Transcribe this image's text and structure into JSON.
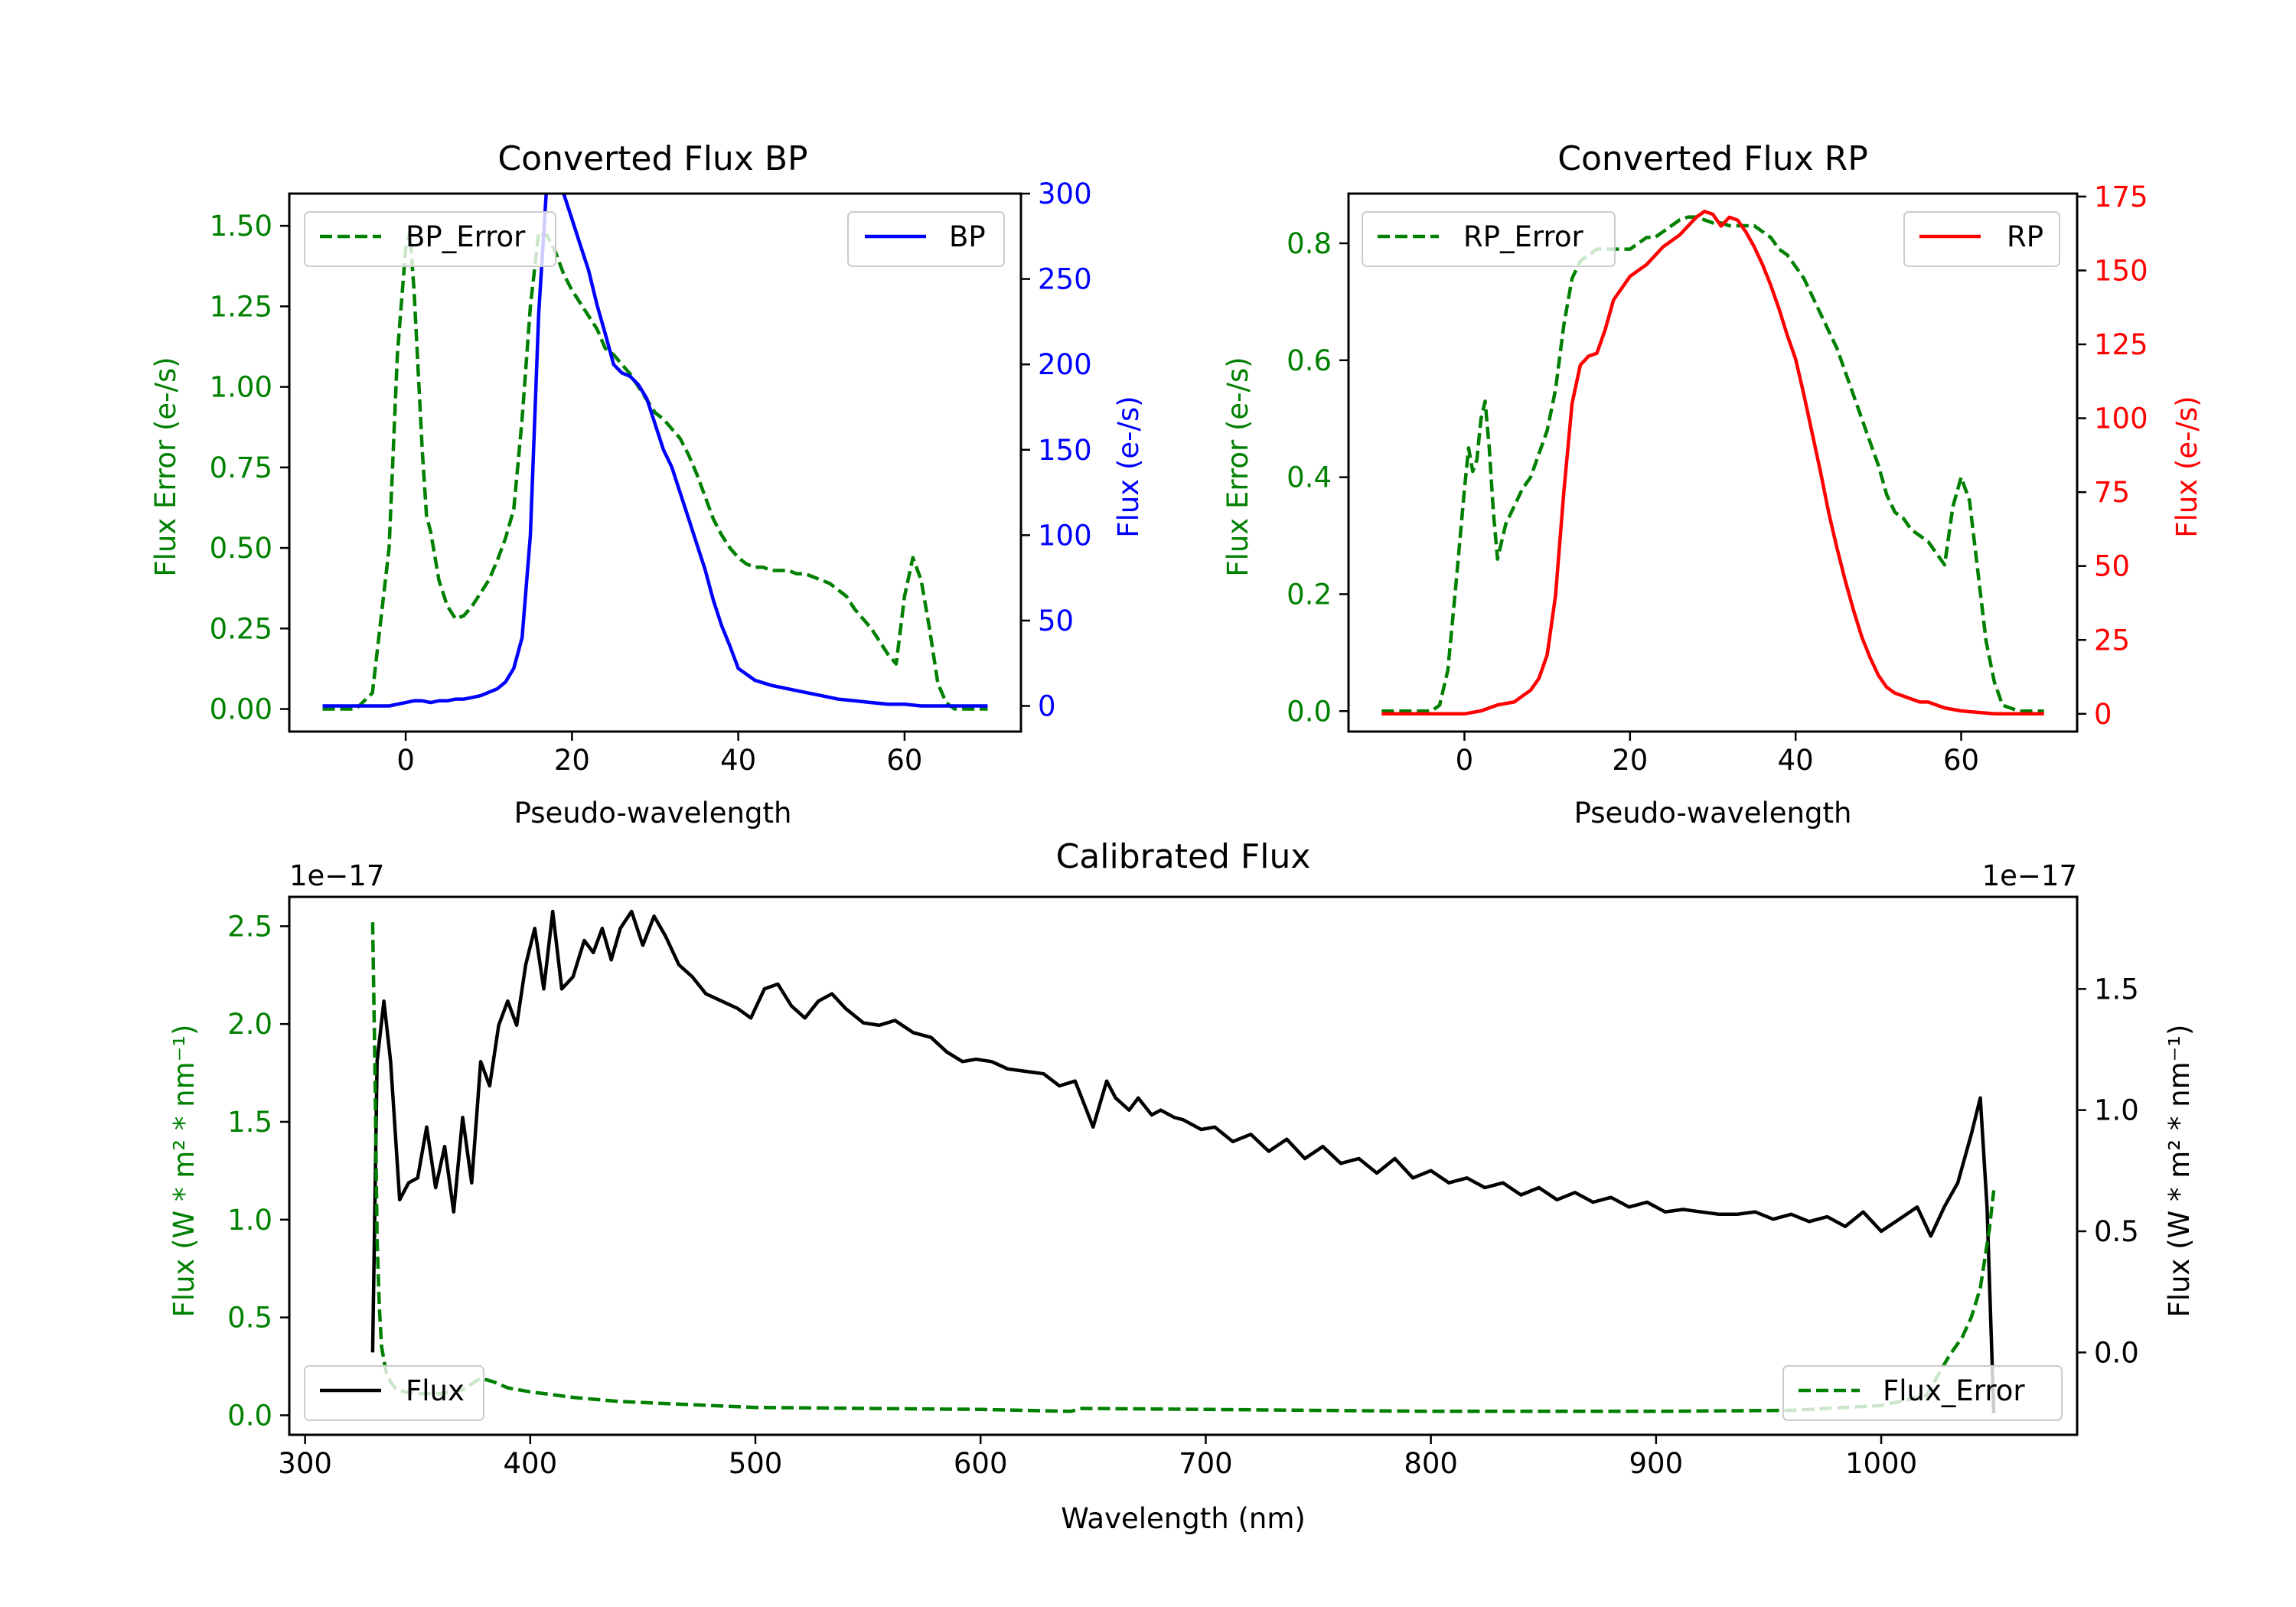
{
  "colors": {
    "error": "#008000",
    "bp": "#0000ff",
    "rp": "#ff0000",
    "flux": "#000000",
    "axis": "#000000"
  },
  "chart_data": [
    {
      "id": "bp",
      "type": "line",
      "title": "Converted Flux BP",
      "xlabel": "Pseudo-wavelength",
      "ylabel_left": "Flux Error (e-/s)",
      "ylabel_right": "Flux (e-/s)",
      "xlim": [
        -14,
        74
      ],
      "ylim_left": [
        -0.07,
        1.6
      ],
      "ylim_right": [
        -15,
        300
      ],
      "xticks": [
        0,
        20,
        40,
        60
      ],
      "xtick_labels": [
        "0",
        "20",
        "40",
        "60"
      ],
      "yticks_left": [
        0,
        0.25,
        0.5,
        0.75,
        1.0,
        1.25,
        1.5
      ],
      "ytick_labels_left": [
        "0.00",
        "0.25",
        "0.50",
        "0.75",
        "1.00",
        "1.25",
        "1.50"
      ],
      "yticks_right": [
        0,
        50,
        100,
        150,
        200,
        250,
        300
      ],
      "ytick_labels_right": [
        "0",
        "50",
        "100",
        "150",
        "200",
        "250",
        "300"
      ],
      "legend_left": "BP_Error",
      "legend_right": "BP",
      "series": [
        {
          "name": "BP_Error",
          "axis": "left",
          "style": "dashed",
          "color": "#008000",
          "x": [
            -10,
            -6,
            -4,
            -2,
            -1,
            0,
            0.5,
            1,
            2,
            2.5,
            3,
            4,
            5,
            6,
            7,
            8,
            9,
            10,
            11,
            12,
            13,
            14,
            15,
            16,
            17,
            18,
            19,
            20,
            21,
            22,
            23,
            24,
            25,
            26,
            27,
            28,
            29,
            30,
            31,
            32,
            33,
            34,
            35,
            36,
            37,
            38,
            39,
            40,
            41,
            42,
            43,
            44,
            45,
            46,
            47,
            48,
            49,
            50,
            51,
            52,
            53,
            54,
            55,
            56,
            57,
            58,
            59,
            60,
            61,
            62,
            63,
            64,
            65,
            66,
            67,
            68,
            70
          ],
          "y": [
            0,
            0,
            0.05,
            0.5,
            1.1,
            1.43,
            1.48,
            1.3,
            0.8,
            0.6,
            0.55,
            0.4,
            0.32,
            0.28,
            0.29,
            0.32,
            0.36,
            0.4,
            0.46,
            0.53,
            0.62,
            0.9,
            1.25,
            1.48,
            1.47,
            1.42,
            1.35,
            1.3,
            1.26,
            1.22,
            1.18,
            1.12,
            1.1,
            1.07,
            1.04,
            1.0,
            0.96,
            0.92,
            0.9,
            0.87,
            0.84,
            0.79,
            0.73,
            0.66,
            0.59,
            0.54,
            0.5,
            0.47,
            0.45,
            0.44,
            0.44,
            0.43,
            0.43,
            0.43,
            0.42,
            0.42,
            0.41,
            0.4,
            0.39,
            0.37,
            0.35,
            0.31,
            0.28,
            0.25,
            0.21,
            0.17,
            0.14,
            0.35,
            0.47,
            0.4,
            0.25,
            0.08,
            0.02,
            0,
            0,
            0,
            0
          ]
        },
        {
          "name": "BP",
          "axis": "right",
          "style": "solid",
          "color": "#0000ff",
          "x": [
            -10,
            -6,
            -4,
            -2,
            0,
            1,
            2,
            3,
            4,
            5,
            6,
            7,
            8,
            9,
            10,
            11,
            12,
            13,
            14,
            15,
            16,
            17,
            18,
            19,
            20,
            21,
            22,
            23,
            24,
            25,
            26,
            27,
            28,
            29,
            30,
            31,
            32,
            33,
            34,
            35,
            36,
            37,
            38,
            39,
            40,
            42,
            44,
            46,
            48,
            50,
            52,
            54,
            56,
            58,
            60,
            62,
            64,
            66,
            68,
            70
          ],
          "y": [
            0,
            0,
            0,
            0,
            2,
            3,
            3,
            2,
            3,
            3,
            4,
            4,
            5,
            6,
            8,
            10,
            14,
            22,
            40,
            100,
            230,
            308,
            305,
            300,
            285,
            270,
            255,
            235,
            218,
            200,
            195,
            193,
            188,
            180,
            165,
            150,
            140,
            125,
            110,
            95,
            80,
            62,
            47,
            35,
            22,
            15,
            12,
            10,
            8,
            6,
            4,
            3,
            2,
            1,
            1,
            0,
            0,
            0,
            0,
            0
          ]
        }
      ]
    },
    {
      "id": "rp",
      "type": "line",
      "title": "Converted Flux RP",
      "xlabel": "Pseudo-wavelength",
      "ylabel_left": "Flux Error (e-/s)",
      "ylabel_right": "Flux (e-/s)",
      "xlim": [
        -14,
        74
      ],
      "ylim_left": [
        -0.035,
        0.885
      ],
      "ylim_right": [
        -6,
        176
      ],
      "xticks": [
        0,
        20,
        40,
        60
      ],
      "xtick_labels": [
        "0",
        "20",
        "40",
        "60"
      ],
      "yticks_left": [
        0,
        0.2,
        0.4,
        0.6,
        0.8
      ],
      "ytick_labels_left": [
        "0.0",
        "0.2",
        "0.4",
        "0.6",
        "0.8"
      ],
      "yticks_right": [
        0,
        25,
        50,
        75,
        100,
        125,
        150,
        175
      ],
      "ytick_labels_right": [
        "0",
        "25",
        "50",
        "75",
        "100",
        "125",
        "150",
        "175"
      ],
      "legend_left": "RP_Error",
      "legend_right": "RP",
      "series": [
        {
          "name": "RP_Error",
          "axis": "left",
          "style": "dashed",
          "color": "#008000",
          "x": [
            -10,
            -4,
            -3,
            -2,
            -1,
            0,
            0.5,
            1,
            1.5,
            2,
            2.5,
            3,
            3.5,
            4,
            5,
            6,
            7,
            8,
            9,
            10,
            11,
            12,
            13,
            14,
            15,
            16,
            17,
            18,
            19,
            20,
            21,
            22,
            23,
            24,
            25,
            26,
            27,
            28,
            29,
            30,
            31,
            32,
            33,
            34,
            35,
            36,
            37,
            38,
            39,
            40,
            41,
            42,
            43,
            44,
            45,
            46,
            47,
            48,
            49,
            50,
            51,
            52,
            53,
            54,
            55,
            56,
            57,
            58,
            59,
            60,
            61,
            62,
            63,
            64,
            65,
            67,
            70
          ],
          "y": [
            0,
            0,
            0.01,
            0.07,
            0.22,
            0.38,
            0.45,
            0.41,
            0.43,
            0.5,
            0.53,
            0.45,
            0.34,
            0.26,
            0.32,
            0.35,
            0.38,
            0.4,
            0.44,
            0.48,
            0.55,
            0.66,
            0.74,
            0.77,
            0.78,
            0.79,
            0.79,
            0.79,
            0.79,
            0.79,
            0.8,
            0.81,
            0.81,
            0.82,
            0.83,
            0.84,
            0.845,
            0.845,
            0.84,
            0.835,
            0.835,
            0.83,
            0.83,
            0.83,
            0.83,
            0.82,
            0.81,
            0.79,
            0.78,
            0.76,
            0.74,
            0.71,
            0.68,
            0.65,
            0.62,
            0.58,
            0.54,
            0.5,
            0.46,
            0.42,
            0.37,
            0.34,
            0.33,
            0.31,
            0.3,
            0.29,
            0.27,
            0.25,
            0.35,
            0.4,
            0.36,
            0.24,
            0.12,
            0.05,
            0.01,
            0,
            0
          ]
        },
        {
          "name": "RP",
          "axis": "right",
          "style": "solid",
          "color": "#ff0000",
          "x": [
            -10,
            -4,
            -2,
            0,
            2,
            4,
            6,
            7,
            8,
            9,
            10,
            11,
            12,
            13,
            14,
            15,
            16,
            17,
            18,
            19,
            20,
            21,
            22,
            23,
            24,
            25,
            26,
            27,
            28,
            29,
            30,
            31,
            32,
            33,
            34,
            35,
            36,
            37,
            38,
            39,
            40,
            41,
            42,
            43,
            44,
            45,
            46,
            47,
            48,
            49,
            50,
            51,
            52,
            53,
            54,
            55,
            56,
            58,
            60,
            62,
            64,
            66,
            68,
            70
          ],
          "y": [
            0,
            0,
            0,
            0,
            1,
            3,
            4,
            6,
            8,
            12,
            20,
            40,
            75,
            105,
            118,
            121,
            122,
            130,
            140,
            144,
            148,
            150,
            152,
            155,
            158,
            160,
            162,
            165,
            168,
            170,
            169,
            165,
            168,
            167,
            163,
            158,
            152,
            145,
            137,
            128,
            120,
            108,
            95,
            82,
            68,
            56,
            45,
            35,
            26,
            19,
            13,
            9,
            7,
            6,
            5,
            4,
            4,
            2,
            1,
            0.5,
            0,
            0,
            0,
            0
          ]
        }
      ]
    },
    {
      "id": "cal",
      "type": "line",
      "title": "Calibrated Flux",
      "xlabel": "Wavelength (nm)",
      "ylabel_left": "Flux (W * m² * nm⁻¹)",
      "ylabel_right": "Flux (W * m² * nm⁻¹)",
      "offset_left": "1e−17",
      "offset_right": "1e−17",
      "xlim": [
        293,
        1087
      ],
      "ylim_left": [
        -0.1,
        2.65
      ],
      "ylim_right": [
        -0.34,
        1.88
      ],
      "xticks": [
        300,
        400,
        500,
        600,
        700,
        800,
        900,
        1000
      ],
      "xtick_labels": [
        "300",
        "400",
        "500",
        "600",
        "700",
        "800",
        "900",
        "1000"
      ],
      "yticks_left": [
        0,
        0.5,
        1.0,
        1.5,
        2.0,
        2.5
      ],
      "ytick_labels_left": [
        "0.0",
        "0.5",
        "1.0",
        "1.5",
        "2.0",
        "2.5"
      ],
      "yticks_right": [
        0,
        0.5,
        1.0,
        1.5
      ],
      "ytick_labels_right": [
        "0.0",
        "0.5",
        "1.0",
        "1.5"
      ],
      "legend_left": "Flux",
      "legend_right": "Flux_Error",
      "series": [
        {
          "name": "Flux",
          "axis": "right",
          "style": "solid",
          "color": "#000000",
          "x": [
            330,
            332,
            335,
            338,
            342,
            346,
            350,
            354,
            358,
            362,
            366,
            370,
            374,
            378,
            382,
            386,
            390,
            394,
            398,
            402,
            406,
            410,
            414,
            419,
            424,
            428,
            432,
            436,
            440,
            445,
            450,
            455,
            460,
            466,
            472,
            478,
            485,
            492,
            498,
            504,
            510,
            516,
            522,
            528,
            534,
            540,
            548,
            555,
            562,
            570,
            578,
            585,
            592,
            598,
            605,
            612,
            620,
            628,
            635,
            642,
            650,
            656,
            660,
            666,
            670,
            676,
            680,
            686,
            690,
            698,
            704,
            712,
            720,
            728,
            736,
            744,
            752,
            760,
            768,
            776,
            784,
            792,
            800,
            808,
            816,
            824,
            832,
            840,
            848,
            856,
            864,
            872,
            880,
            888,
            896,
            904,
            912,
            920,
            928,
            936,
            944,
            952,
            960,
            968,
            976,
            984,
            992,
            1000,
            1008,
            1016,
            1022,
            1028,
            1034,
            1040,
            1044,
            1047,
            1050
          ],
          "y": [
            0.0,
            1.2,
            1.45,
            1.2,
            0.63,
            0.7,
            0.72,
            0.93,
            0.68,
            0.85,
            0.58,
            0.97,
            0.7,
            1.2,
            1.1,
            1.35,
            1.45,
            1.35,
            1.6,
            1.75,
            1.5,
            1.82,
            1.5,
            1.55,
            1.7,
            1.65,
            1.75,
            1.62,
            1.75,
            1.82,
            1.68,
            1.8,
            1.72,
            1.6,
            1.55,
            1.48,
            1.45,
            1.42,
            1.38,
            1.5,
            1.52,
            1.43,
            1.38,
            1.45,
            1.48,
            1.42,
            1.36,
            1.35,
            1.37,
            1.32,
            1.3,
            1.24,
            1.2,
            1.21,
            1.2,
            1.17,
            1.16,
            1.15,
            1.1,
            1.12,
            0.93,
            1.12,
            1.05,
            1.0,
            1.05,
            0.98,
            1.0,
            0.97,
            0.96,
            0.92,
            0.93,
            0.87,
            0.9,
            0.83,
            0.88,
            0.8,
            0.85,
            0.78,
            0.8,
            0.74,
            0.8,
            0.72,
            0.75,
            0.7,
            0.72,
            0.68,
            0.7,
            0.65,
            0.68,
            0.63,
            0.66,
            0.62,
            0.64,
            0.6,
            0.62,
            0.58,
            0.59,
            0.58,
            0.57,
            0.57,
            0.58,
            0.55,
            0.57,
            0.54,
            0.56,
            0.52,
            0.58,
            0.5,
            0.55,
            0.6,
            0.48,
            0.6,
            0.7,
            0.9,
            1.05,
            0.6,
            -0.25
          ]
        },
        {
          "name": "Flux_Error",
          "axis": "left",
          "style": "dashed",
          "color": "#008000",
          "x": [
            330,
            331,
            332,
            333,
            334,
            336,
            338,
            340,
            344,
            350,
            360,
            370,
            378,
            384,
            390,
            400,
            420,
            440,
            460,
            480,
            500,
            550,
            600,
            640,
            645,
            700,
            800,
            900,
            960,
            1000,
            1020,
            1030,
            1036,
            1040,
            1044,
            1048,
            1050
          ],
          "y": [
            2.52,
            1.8,
            0.9,
            0.55,
            0.35,
            0.22,
            0.17,
            0.14,
            0.12,
            0.11,
            0.11,
            0.13,
            0.19,
            0.17,
            0.14,
            0.12,
            0.09,
            0.07,
            0.06,
            0.05,
            0.04,
            0.035,
            0.03,
            0.02,
            0.035,
            0.03,
            0.02,
            0.02,
            0.025,
            0.05,
            0.1,
            0.3,
            0.4,
            0.5,
            0.65,
            0.95,
            1.15
          ]
        }
      ]
    }
  ]
}
